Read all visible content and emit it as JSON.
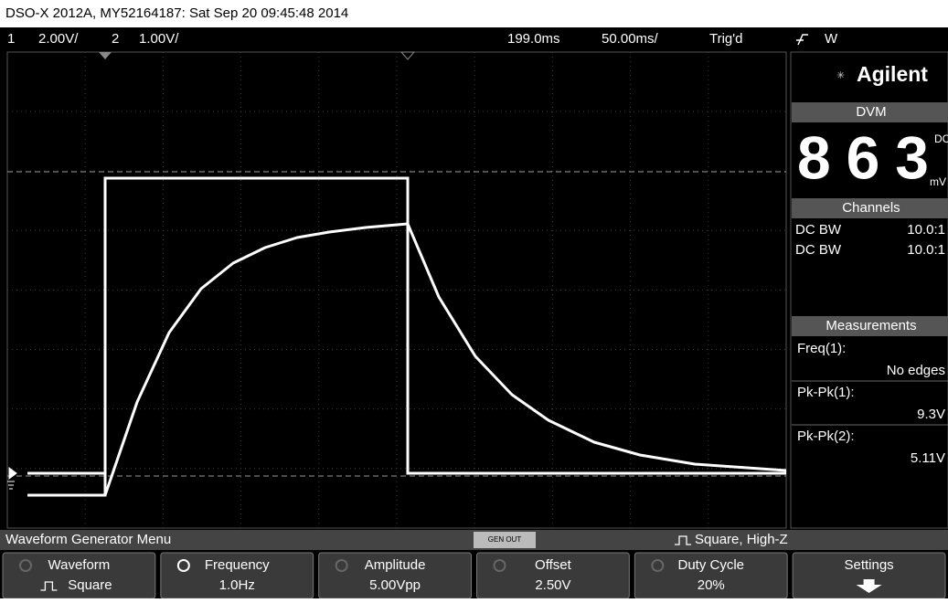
{
  "header": {
    "title": "DSO-X 2012A, MY52164187: Sat Sep 20 09:45:48 2014"
  },
  "status": {
    "ch1_num": "1",
    "ch1_scale": "2.00V/",
    "ch2_num": "2",
    "ch2_scale": "1.00V/",
    "delay": "199.0ms",
    "timebase": "50.00ms/",
    "trigger": "Trig'd",
    "trig_source": "W"
  },
  "panel": {
    "brand": "Agilent",
    "dvm": {
      "title": "DVM",
      "value": "863",
      "mode": "DC",
      "unit": "mV"
    },
    "channels": {
      "title": "Channels",
      "rows": [
        [
          "DC BW",
          "10.0:1"
        ],
        [
          "DC BW",
          "10.0:1"
        ]
      ]
    },
    "measurements": {
      "title": "Measurements",
      "items": [
        {
          "label": "Freq(1):",
          "value": "No edges"
        },
        {
          "label": "Pk-Pk(1):",
          "value": "9.3V"
        },
        {
          "label": "Pk-Pk(2):",
          "value": "5.11V"
        }
      ]
    }
  },
  "menu": {
    "title": "Waveform Generator Menu",
    "gen_out": "GEN OUT",
    "waveform_info": "Square, High-Z"
  },
  "softkeys": [
    {
      "label": "Waveform",
      "value": "Square"
    },
    {
      "label": "Frequency",
      "value": "1.0Hz"
    },
    {
      "label": "Amplitude",
      "value": "5.00Vpp"
    },
    {
      "label": "Offset",
      "value": "2.50V"
    },
    {
      "label": "Duty Cycle",
      "value": "20%"
    },
    {
      "label": "Settings"
    }
  ]
}
